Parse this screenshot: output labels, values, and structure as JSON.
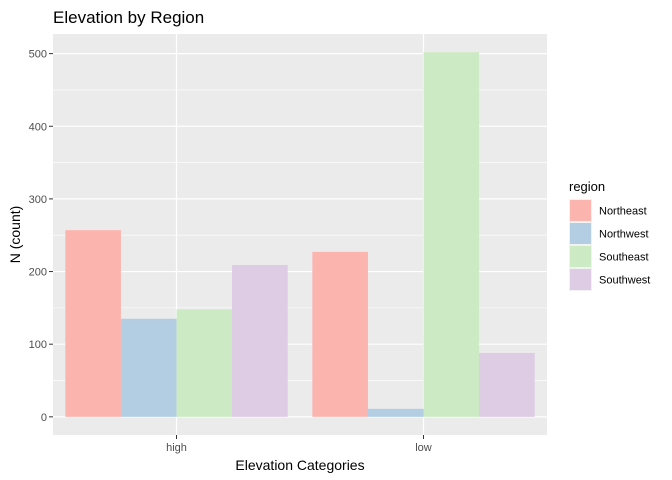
{
  "chart_data": {
    "type": "bar",
    "title": "Elevation by Region",
    "xlabel": "Elevation Categories",
    "ylabel": "N (count)",
    "categories": [
      "high",
      "low"
    ],
    "series": [
      {
        "name": "Northeast",
        "color": "#FBB4AE",
        "values": [
          257,
          227
        ]
      },
      {
        "name": "Northwest",
        "color": "#B3CDE3",
        "values": [
          135,
          11
        ]
      },
      {
        "name": "Southeast",
        "color": "#CCEBC5",
        "values": [
          148,
          502
        ]
      },
      {
        "name": "Southwest",
        "color": "#DECBE4",
        "values": [
          209,
          88
        ]
      }
    ],
    "ylim": [
      -25,
      527
    ],
    "yticks": [
      0,
      100,
      200,
      300,
      400,
      500
    ],
    "grid": true,
    "legend": {
      "title": "region",
      "position": "right"
    }
  }
}
